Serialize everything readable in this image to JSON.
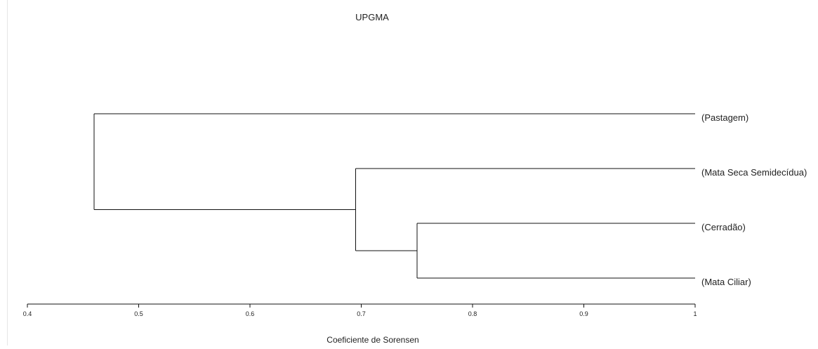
{
  "chart_data": {
    "type": "dendrogram",
    "title": "UPGMA",
    "xlabel": "Coeficiente de Sorensen",
    "xlim": [
      0.4,
      1
    ],
    "x_ticks": [
      "0.4",
      "0.5",
      "0.6",
      "0.7",
      "0.8",
      "0.9",
      "1"
    ],
    "leaves": [
      "(Pastagem)",
      "(Mata Seca Semidecídua)",
      "(Cerradão)",
      "(Mata Ciliar)"
    ],
    "merges": [
      {
        "members": [
          "(Cerradão)",
          "(Mata Ciliar)"
        ],
        "similarity": 0.75
      },
      {
        "members": [
          "(Mata Seca Semidecídua)",
          "(Cerradão)",
          "(Mata Ciliar)"
        ],
        "similarity": 0.695
      },
      {
        "members": [
          "(Pastagem)",
          "(Mata Seca Semidecídua)",
          "(Cerradão)",
          "(Mata Ciliar)"
        ],
        "similarity": 0.46
      }
    ],
    "grid": false,
    "colors": {
      "line": "#111111",
      "text": "#222222"
    }
  }
}
